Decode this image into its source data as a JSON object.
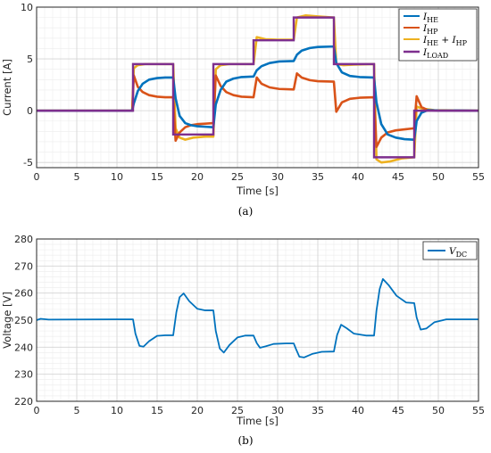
{
  "figure": {
    "caption_a": "(a)",
    "caption_b": "(b)"
  },
  "chart_data": [
    {
      "id": "a",
      "type": "line",
      "title": "",
      "xlabel": "Time [s]",
      "ylabel": "Current [A]",
      "xlim": [
        0,
        55
      ],
      "ylim": [
        -5.5,
        10
      ],
      "xticks": [
        0,
        5,
        10,
        15,
        20,
        25,
        30,
        35,
        40,
        45,
        50,
        55
      ],
      "yticks": [
        -5,
        0,
        5,
        10
      ],
      "grid": true,
      "minor_grid": true,
      "legend_position": "top-right",
      "colors": {
        "I_HE": "#0072BD",
        "I_HP": "#D95319",
        "I_HE_plus_I_HP": "#EDB120",
        "I_LOAD": "#7E2F8E"
      },
      "load_profile": {
        "breakpoints": [
          12,
          17,
          22,
          27,
          32,
          37,
          42,
          47
        ],
        "levels": [
          0,
          4.5,
          -2.3,
          4.5,
          6.8,
          9.0,
          4.5,
          -4.5,
          0
        ]
      },
      "series": [
        {
          "key": "I_HE",
          "name": "I_HE",
          "x": [
            0,
            11.9,
            12.1,
            12.6,
            13.2,
            14,
            15,
            16,
            17,
            17.3,
            17.8,
            18.5,
            19.2,
            20,
            21,
            22,
            22.3,
            22.9,
            23.6,
            24.5,
            25.5,
            27,
            27.4,
            28,
            29,
            30.2,
            32,
            32.4,
            33,
            34,
            35,
            37,
            37.3,
            38,
            39,
            40.2,
            42,
            42.3,
            42.9,
            43.7,
            44.7,
            45.8,
            47,
            47.3,
            47.9,
            48.7,
            50,
            55
          ],
          "values": [
            0,
            0,
            0.7,
            1.9,
            2.6,
            3.0,
            3.15,
            3.2,
            3.2,
            1.2,
            -0.5,
            -1.2,
            -1.4,
            -1.5,
            -1.55,
            -1.6,
            0.6,
            2.0,
            2.8,
            3.1,
            3.25,
            3.3,
            3.9,
            4.3,
            4.6,
            4.75,
            4.8,
            5.4,
            5.8,
            6.05,
            6.15,
            6.2,
            4.6,
            3.7,
            3.35,
            3.25,
            3.2,
            0.8,
            -1.3,
            -2.3,
            -2.6,
            -2.75,
            -2.8,
            -1.0,
            -0.2,
            0.05,
            0.02,
            0
          ]
        },
        {
          "key": "I_HP",
          "name": "I_HP",
          "x": [
            0,
            11.9,
            12.1,
            12.6,
            13.2,
            14,
            15,
            16,
            17,
            17.3,
            17.8,
            18.5,
            19.2,
            20,
            21,
            22,
            22.3,
            22.9,
            23.6,
            24.5,
            25.5,
            27,
            27.4,
            28,
            29,
            30.2,
            32,
            32.4,
            33,
            34,
            35,
            37,
            37.3,
            38,
            39,
            40.2,
            42,
            42.3,
            42.9,
            43.7,
            44.7,
            45.8,
            47,
            47.3,
            47.9,
            48.7,
            50,
            55
          ],
          "values": [
            0,
            0,
            3.4,
            2.3,
            1.8,
            1.5,
            1.35,
            1.3,
            1.3,
            -2.9,
            -2.1,
            -1.6,
            -1.4,
            -1.3,
            -1.25,
            -1.2,
            3.4,
            2.4,
            1.8,
            1.5,
            1.35,
            1.3,
            3.2,
            2.6,
            2.25,
            2.1,
            2.05,
            3.6,
            3.2,
            2.95,
            2.85,
            2.8,
            -0.1,
            0.8,
            1.15,
            1.25,
            1.3,
            -3.5,
            -2.6,
            -2.1,
            -1.9,
            -1.8,
            -1.7,
            1.4,
            0.35,
            0.05,
            0.02,
            0
          ]
        },
        {
          "key": "I_HE_plus_I_HP",
          "name": "I_HE + I_HP",
          "x": [
            0,
            11.9,
            12.1,
            12.6,
            13.5,
            15,
            17,
            17.3,
            17.8,
            18.5,
            19.5,
            21,
            22,
            22.3,
            22.9,
            24,
            25.5,
            27,
            27.4,
            28.5,
            30,
            32,
            32.4,
            33.5,
            35,
            37,
            37.3,
            38.2,
            39.5,
            42,
            42.3,
            42.9,
            44,
            45.5,
            47,
            47.3,
            48,
            49.5,
            55
          ],
          "values": [
            0,
            0,
            4.1,
            4.4,
            4.5,
            4.5,
            4.5,
            -1.7,
            -2.6,
            -2.8,
            -2.6,
            -2.5,
            -2.5,
            4.0,
            4.4,
            4.5,
            4.5,
            4.5,
            7.1,
            6.9,
            6.85,
            6.85,
            9.0,
            9.2,
            9.1,
            9.0,
            4.5,
            4.4,
            4.45,
            4.5,
            -4.7,
            -5.0,
            -4.9,
            -4.6,
            -4.5,
            0.4,
            0.2,
            0.05,
            0
          ]
        }
      ]
    },
    {
      "id": "b",
      "type": "line",
      "title": "",
      "xlabel": "Time [s]",
      "ylabel": "Voltage [V]",
      "xlim": [
        0,
        55
      ],
      "ylim": [
        220,
        280
      ],
      "xticks": [
        0,
        5,
        10,
        15,
        20,
        25,
        30,
        35,
        40,
        45,
        50,
        55
      ],
      "yticks": [
        220,
        230,
        240,
        250,
        260,
        270,
        280
      ],
      "grid": true,
      "minor_grid": true,
      "legend_position": "top-right",
      "colors": {
        "V_DC": "#0072BD"
      },
      "series": [
        {
          "key": "V_DC",
          "name": "V_DC",
          "x": [
            0,
            0.5,
            1.5,
            12,
            12.3,
            12.8,
            13.3,
            14,
            15,
            16,
            17,
            17.4,
            17.8,
            18.3,
            19,
            20,
            21,
            22,
            22.3,
            22.8,
            23.3,
            24,
            25,
            26,
            27,
            27.4,
            27.8,
            28.5,
            29.5,
            31,
            32,
            32.3,
            32.7,
            33.3,
            34.3,
            35.5,
            37,
            37.4,
            37.9,
            38.6,
            39.5,
            41,
            42,
            42.3,
            42.7,
            43.1,
            43.8,
            44.8,
            46,
            47,
            47.3,
            47.8,
            48.5,
            49.5,
            51,
            55
          ],
          "values": [
            250,
            250.5,
            250.2,
            250.3,
            245,
            240.5,
            240.2,
            242.2,
            244.2,
            244.4,
            244.4,
            253,
            258.5,
            259.9,
            257,
            254.2,
            253.6,
            253.6,
            246,
            239.5,
            238,
            240.8,
            243.6,
            244.3,
            244.3,
            241.5,
            239.8,
            240.3,
            241.2,
            241.4,
            241.4,
            239.2,
            236.5,
            236.2,
            237.5,
            238.3,
            238.4,
            244.5,
            248.3,
            247,
            245,
            244.3,
            244.3,
            253.5,
            261.5,
            265.2,
            263,
            259,
            256.5,
            256.3,
            251,
            246.5,
            246.9,
            249.2,
            250.3,
            250.3
          ]
        }
      ]
    }
  ]
}
